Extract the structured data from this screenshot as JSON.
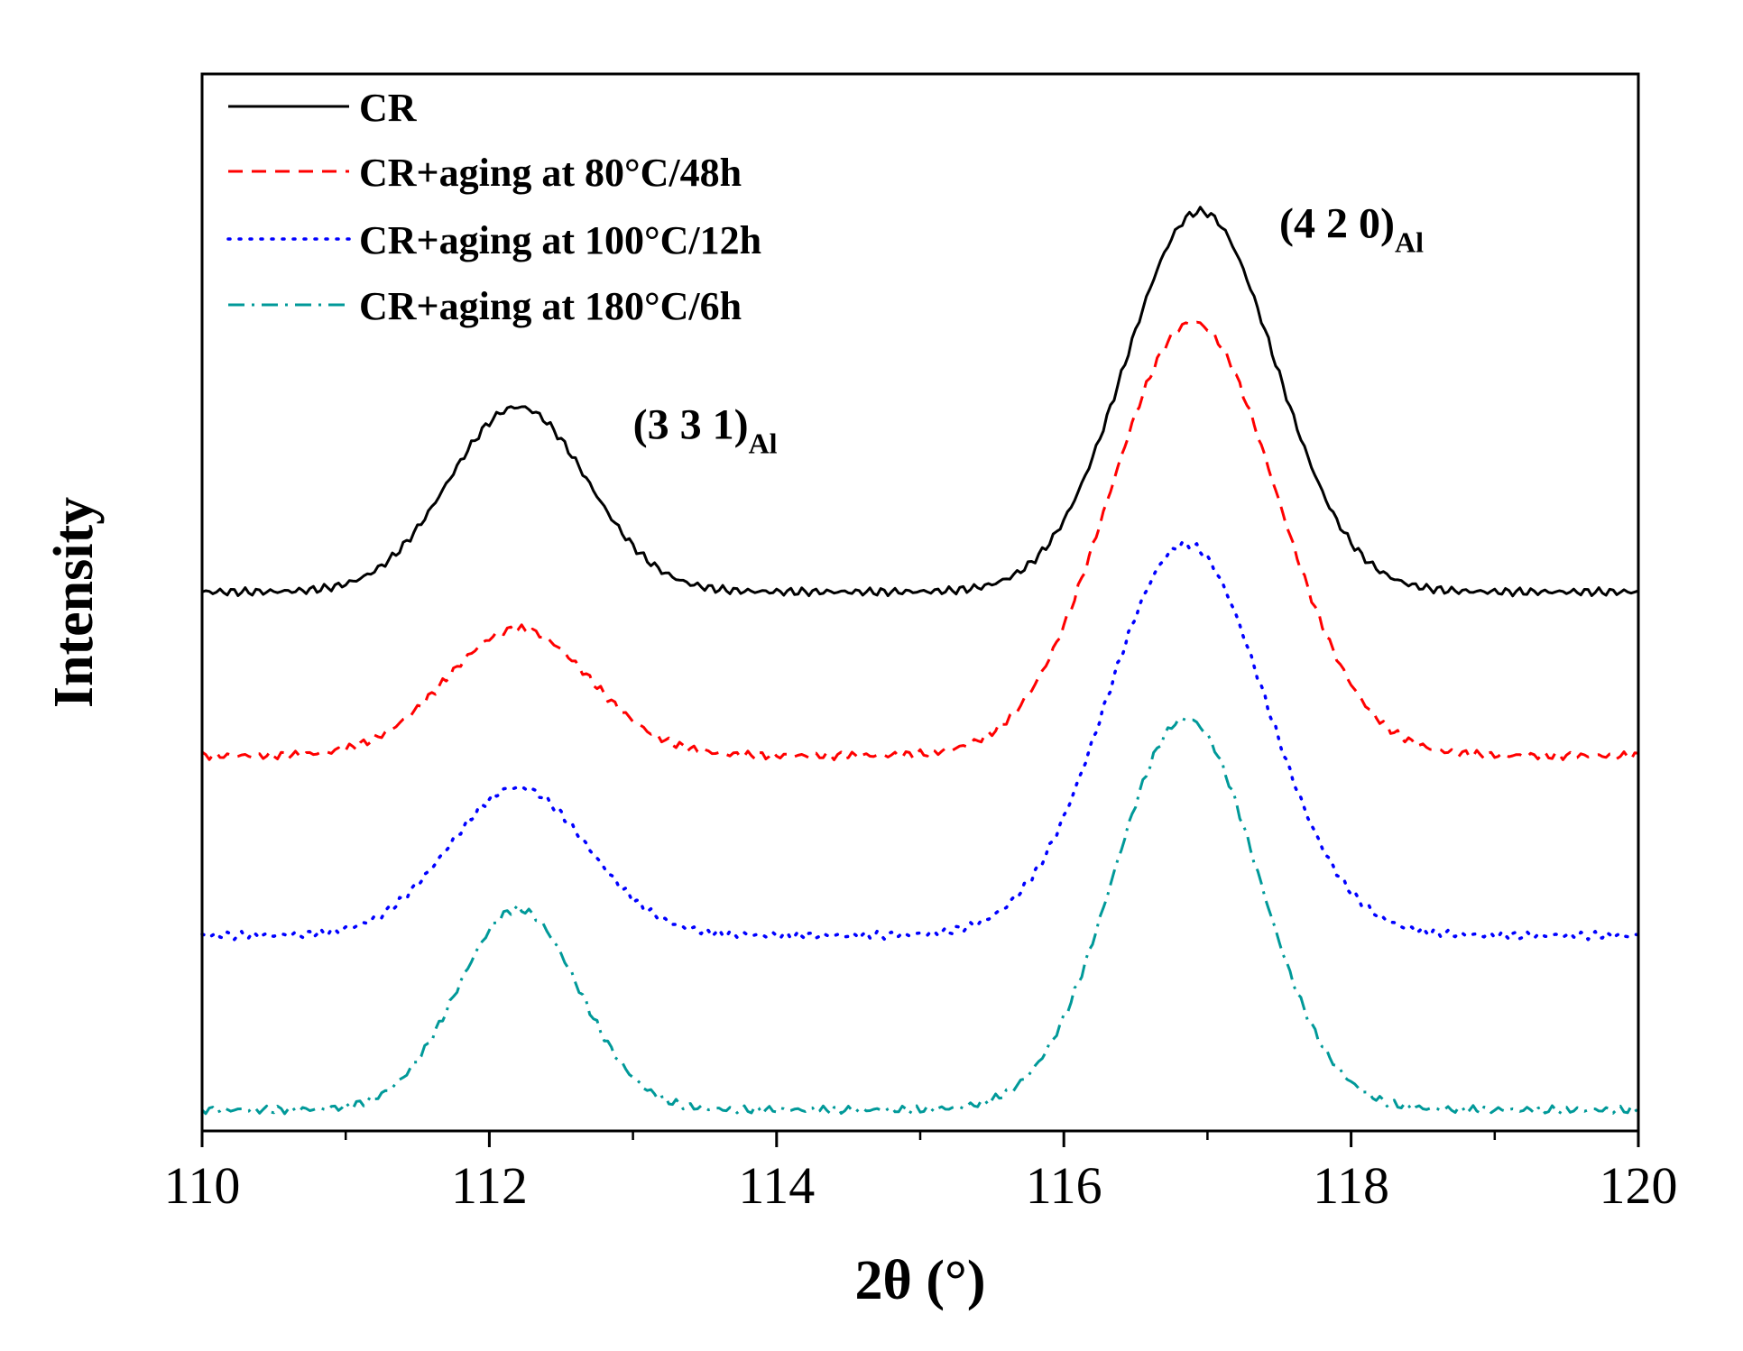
{
  "chart_data": {
    "type": "line",
    "title": "",
    "xlabel": "2θ (°)",
    "ylabel": "Intensity",
    "xlim": [
      110,
      120
    ],
    "ylim": [
      0,
      1
    ],
    "x_ticks": [
      110,
      112,
      114,
      116,
      118,
      120
    ],
    "x_tick_labels": [
      "110",
      "112",
      "114",
      "116",
      "118",
      "120"
    ],
    "y_ticks_shown": false,
    "grid": false,
    "legend_position": "top-left",
    "colors": {
      "CR": "#000000",
      "aging80": "#ff0000",
      "aging100": "#0000ff",
      "aging180": "#009999"
    },
    "series": [
      {
        "name": "CR",
        "color": "#000000",
        "style": "solid",
        "baseline": 0.51,
        "peaks": [
          {
            "center": 112.2,
            "height": 0.175,
            "width": 0.48
          },
          {
            "center": 116.95,
            "height": 0.36,
            "width": 0.52
          }
        ]
      },
      {
        "name": "CR+aging at 80°C/48h",
        "color": "#ff0000",
        "style": "dashed",
        "baseline": 0.355,
        "peaks": [
          {
            "center": 112.2,
            "height": 0.12,
            "width": 0.5
          },
          {
            "center": 116.9,
            "height": 0.41,
            "width": 0.58
          }
        ]
      },
      {
        "name": "CR+aging at 100°C/12h",
        "color": "#0000ff",
        "style": "dotted",
        "baseline": 0.185,
        "peaks": [
          {
            "center": 112.2,
            "height": 0.14,
            "width": 0.48
          },
          {
            "center": 116.85,
            "height": 0.37,
            "width": 0.55
          }
        ]
      },
      {
        "name": "CR+aging at 180°C/6h",
        "color": "#009999",
        "style": "dashdot",
        "baseline": 0.02,
        "peaks": [
          {
            "center": 112.2,
            "height": 0.19,
            "width": 0.42
          },
          {
            "center": 116.85,
            "height": 0.37,
            "width": 0.5
          }
        ]
      }
    ],
    "annotations": [
      {
        "main": "(3 3 1)",
        "sub": "Al",
        "x": 113.0,
        "y": 0.655
      },
      {
        "main": "(4 2 0)",
        "sub": "Al",
        "x": 117.5,
        "y": 0.845
      }
    ]
  }
}
